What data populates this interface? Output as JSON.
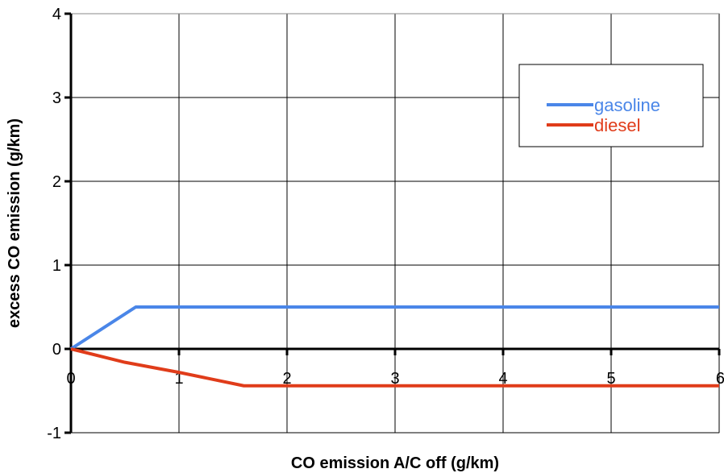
{
  "chart_data": {
    "type": "line",
    "title": "",
    "xlabel": "CO emission A/C off (g/km)",
    "ylabel": "excess CO emission (g/km)",
    "xlim": [
      0,
      6
    ],
    "ylim": [
      -1,
      4
    ],
    "xticks": [
      "0",
      "1",
      "2",
      "3",
      "4",
      "5",
      "6"
    ],
    "yticks": [
      "-1",
      "0",
      "1",
      "2",
      "3",
      "4"
    ],
    "grid": true,
    "legend_position": "top-right",
    "series": [
      {
        "name": "gasoline",
        "color": "#4a86e8",
        "x": [
          0,
          0.6,
          6
        ],
        "y": [
          0,
          0.5,
          0.5
        ]
      },
      {
        "name": "diesel",
        "color": "#e03c1a",
        "x": [
          0,
          0.5,
          1.0,
          1.6,
          6
        ],
        "y": [
          0,
          -0.16,
          -0.28,
          -0.44,
          -0.44
        ]
      }
    ]
  }
}
